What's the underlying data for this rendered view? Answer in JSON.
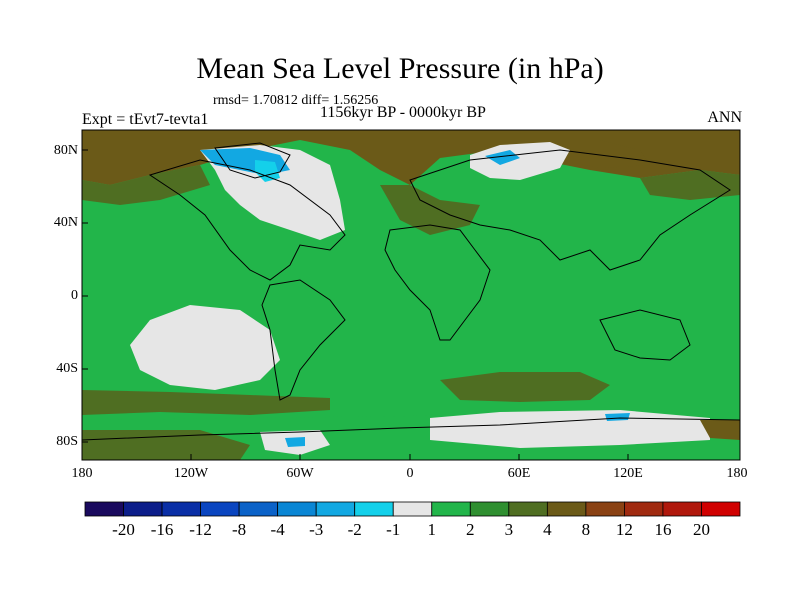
{
  "title": "Mean Sea Level Pressure (in hPa)",
  "stats": "rmsd= 1.70812 diff= 1.56256",
  "experiment": "Expt = tEvt7-tevta1",
  "period": "1156kyr BP - 0000kyr BP",
  "season": "ANN",
  "y_ticks": [
    "80N",
    "40N",
    "0",
    "40S",
    "80S"
  ],
  "x_ticks": [
    "180",
    "120W",
    "60W",
    "0",
    "60E",
    "120E",
    "180"
  ],
  "colorbar": {
    "labels": [
      "-20",
      "-16",
      "-12",
      "-8",
      "-4",
      "-3",
      "-2",
      "-1",
      "1",
      "2",
      "3",
      "4",
      "8",
      "12",
      "16",
      "20"
    ],
    "colors": [
      "#1a0a5e",
      "#0c1e8a",
      "#0a2fa6",
      "#0a45c0",
      "#0b62c8",
      "#0a86d4",
      "#12a8e2",
      "#14d0ea",
      "#e6e6e6",
      "#22b54a",
      "#2f8f30",
      "#4f6e22",
      "#6b5a18",
      "#8a4214",
      "#a02a10",
      "#b0180c",
      "#d00000"
    ]
  },
  "palette": {
    "green": "#22b54a",
    "white": "#e6e6e6",
    "olive": "#4f6e22",
    "brown": "#6b5a18",
    "cyan": "#12a8e2"
  }
}
